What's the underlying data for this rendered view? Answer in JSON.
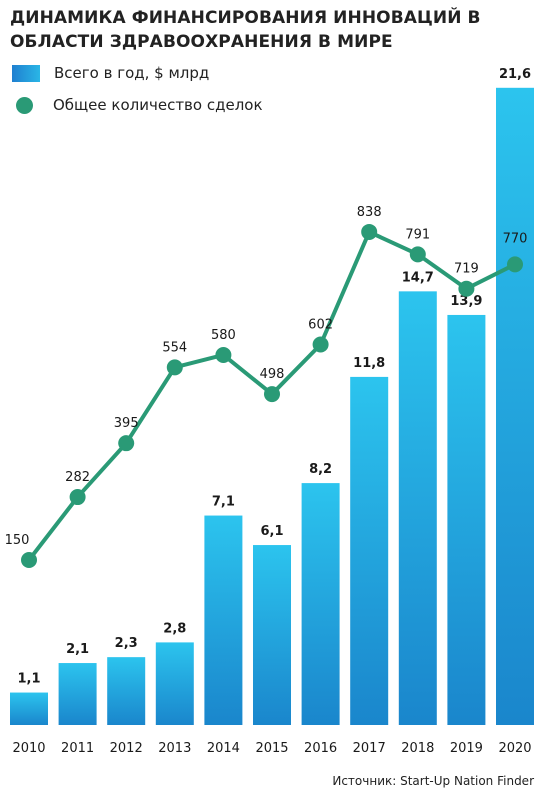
{
  "title": "ДИНАМИКА ФИНАНСИРОВАНИЯ ИННОВАЦИЙ В ОБЛАСТИ ЗДРАВООХРАНЕНИЯ В МИРЕ",
  "legend": {
    "bars_label": "Всего в год, $ млрд",
    "line_label": "Общее количество сделок"
  },
  "source": "Источник: Start-Up Nation Finder",
  "colors": {
    "bar_top": "#2cc4ee",
    "bar_bottom": "#1a86cc",
    "line": "#2a9a76"
  },
  "chart_data": {
    "type": "bar",
    "categories": [
      "2010",
      "2011",
      "2012",
      "2013",
      "2014",
      "2015",
      "2016",
      "2017",
      "2018",
      "2019",
      "2020"
    ],
    "series": [
      {
        "name": "Всего в год, $ млрд",
        "type": "bar",
        "values": [
          1.1,
          2.1,
          2.3,
          2.8,
          7.1,
          6.1,
          8.2,
          11.8,
          14.7,
          13.9,
          21.6
        ],
        "labels": [
          "1,1",
          "2,1",
          "2,3",
          "2,8",
          "7,1",
          "6,1",
          "8,2",
          "11,8",
          "14,7",
          "13,9",
          "21,6"
        ]
      },
      {
        "name": "Общее количество сделок",
        "type": "line",
        "values": [
          150,
          282,
          395,
          554,
          580,
          498,
          602,
          838,
          791,
          719,
          770
        ],
        "labels": [
          "150",
          "282",
          "395",
          "554",
          "580",
          "498",
          "602",
          "838",
          "791",
          "719",
          "770"
        ]
      }
    ],
    "legend_position": "top-left",
    "grid": false
  }
}
